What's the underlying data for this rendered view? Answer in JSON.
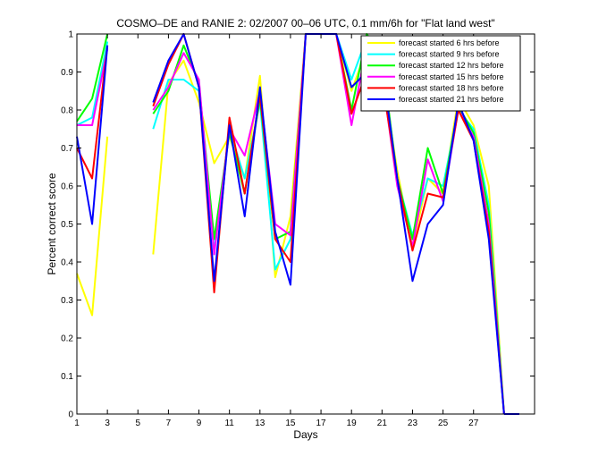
{
  "chart_data": {
    "type": "line",
    "title": "COSMO–DE and RANIE 2: 02/2007 00–06 UTC, 0.1 mm/6h for \"Flat land west\"",
    "xlabel": "Days",
    "ylabel": "Percent correct score",
    "xlim": [
      1,
      31
    ],
    "ylim": [
      0,
      1
    ],
    "x_ticks": [
      1,
      3,
      5,
      7,
      9,
      11,
      13,
      15,
      17,
      19,
      21,
      23,
      25,
      27
    ],
    "y_ticks": [
      0,
      0.1,
      0.2,
      0.3,
      0.4,
      0.5,
      0.6,
      0.7,
      0.8,
      0.9,
      1
    ],
    "y_tick_labels": [
      "0",
      "0.1",
      "0.2",
      "0.3",
      "0.4",
      "0.5",
      "0.6",
      "0.7",
      "0.8",
      "0.9",
      "1"
    ],
    "grid": false,
    "legend_position": "top-right",
    "x": [
      1,
      2,
      3,
      4,
      5,
      6,
      7,
      8,
      9,
      10,
      11,
      12,
      13,
      14,
      15,
      16,
      17,
      18,
      19,
      20,
      21,
      22,
      23,
      24,
      25,
      26,
      27,
      28,
      29
    ],
    "series": [
      {
        "name": "forecast started 6 hrs before",
        "color": "#ffff00",
        "values": [
          0.37,
          0.26,
          0.73,
          null,
          null,
          0.42,
          0.87,
          0.93,
          0.82,
          0.66,
          0.73,
          0.62,
          0.89,
          0.36,
          0.52,
          1.0,
          1.0,
          1.0,
          0.85,
          0.96,
          0.9,
          0.64,
          0.44,
          0.62,
          0.58,
          0.83,
          0.76,
          0.6,
          0.0
        ]
      },
      {
        "name": "forecast started 9 hrs before",
        "color": "#00ffff",
        "values": [
          0.76,
          0.78,
          0.98,
          null,
          null,
          0.75,
          0.88,
          0.88,
          0.85,
          0.43,
          0.75,
          0.62,
          0.82,
          0.38,
          0.46,
          1.0,
          1.0,
          1.0,
          0.88,
          0.99,
          0.93,
          0.62,
          0.47,
          0.62,
          0.6,
          0.8,
          0.75,
          0.55,
          0.0
        ]
      },
      {
        "name": "forecast started 12 hrs before",
        "color": "#00ff00",
        "values": [
          0.77,
          0.83,
          1.0,
          null,
          null,
          0.79,
          0.85,
          0.97,
          0.87,
          0.46,
          0.74,
          0.58,
          0.83,
          0.46,
          0.48,
          1.0,
          1.0,
          1.0,
          0.8,
          1.0,
          0.94,
          0.62,
          0.46,
          0.7,
          0.58,
          0.81,
          0.74,
          0.53,
          0.0
        ]
      },
      {
        "name": "forecast started 15 hrs before",
        "color": "#ff00ff",
        "values": [
          0.76,
          0.76,
          0.96,
          null,
          null,
          0.8,
          0.86,
          0.95,
          0.88,
          0.42,
          0.75,
          0.68,
          0.85,
          0.5,
          0.47,
          1.0,
          1.0,
          1.0,
          0.76,
          0.97,
          0.89,
          0.6,
          0.44,
          0.67,
          0.56,
          0.8,
          0.73,
          0.5,
          0.0
        ]
      },
      {
        "name": "forecast started 18 hrs before",
        "color": "#ff0000",
        "values": [
          0.7,
          0.62,
          0.97,
          null,
          null,
          0.81,
          0.92,
          1.0,
          0.86,
          0.32,
          0.78,
          0.58,
          0.84,
          0.46,
          0.4,
          1.0,
          1.0,
          1.0,
          0.79,
          0.9,
          0.88,
          0.62,
          0.43,
          0.58,
          0.57,
          0.8,
          0.72,
          0.48,
          0.0
        ]
      },
      {
        "name": "forecast started 21 hrs before",
        "color": "#0000ff",
        "values": [
          0.73,
          0.5,
          0.97,
          null,
          null,
          0.82,
          0.93,
          1.0,
          0.86,
          0.35,
          0.76,
          0.52,
          0.86,
          0.48,
          0.34,
          1.0,
          1.0,
          1.0,
          0.86,
          0.9,
          0.92,
          0.62,
          0.35,
          0.5,
          0.55,
          0.82,
          0.72,
          0.46,
          0.0
        ]
      }
    ],
    "tail": {
      "x": [
        29,
        30
      ],
      "y": [
        0,
        0
      ],
      "color": "#0000ff"
    }
  }
}
